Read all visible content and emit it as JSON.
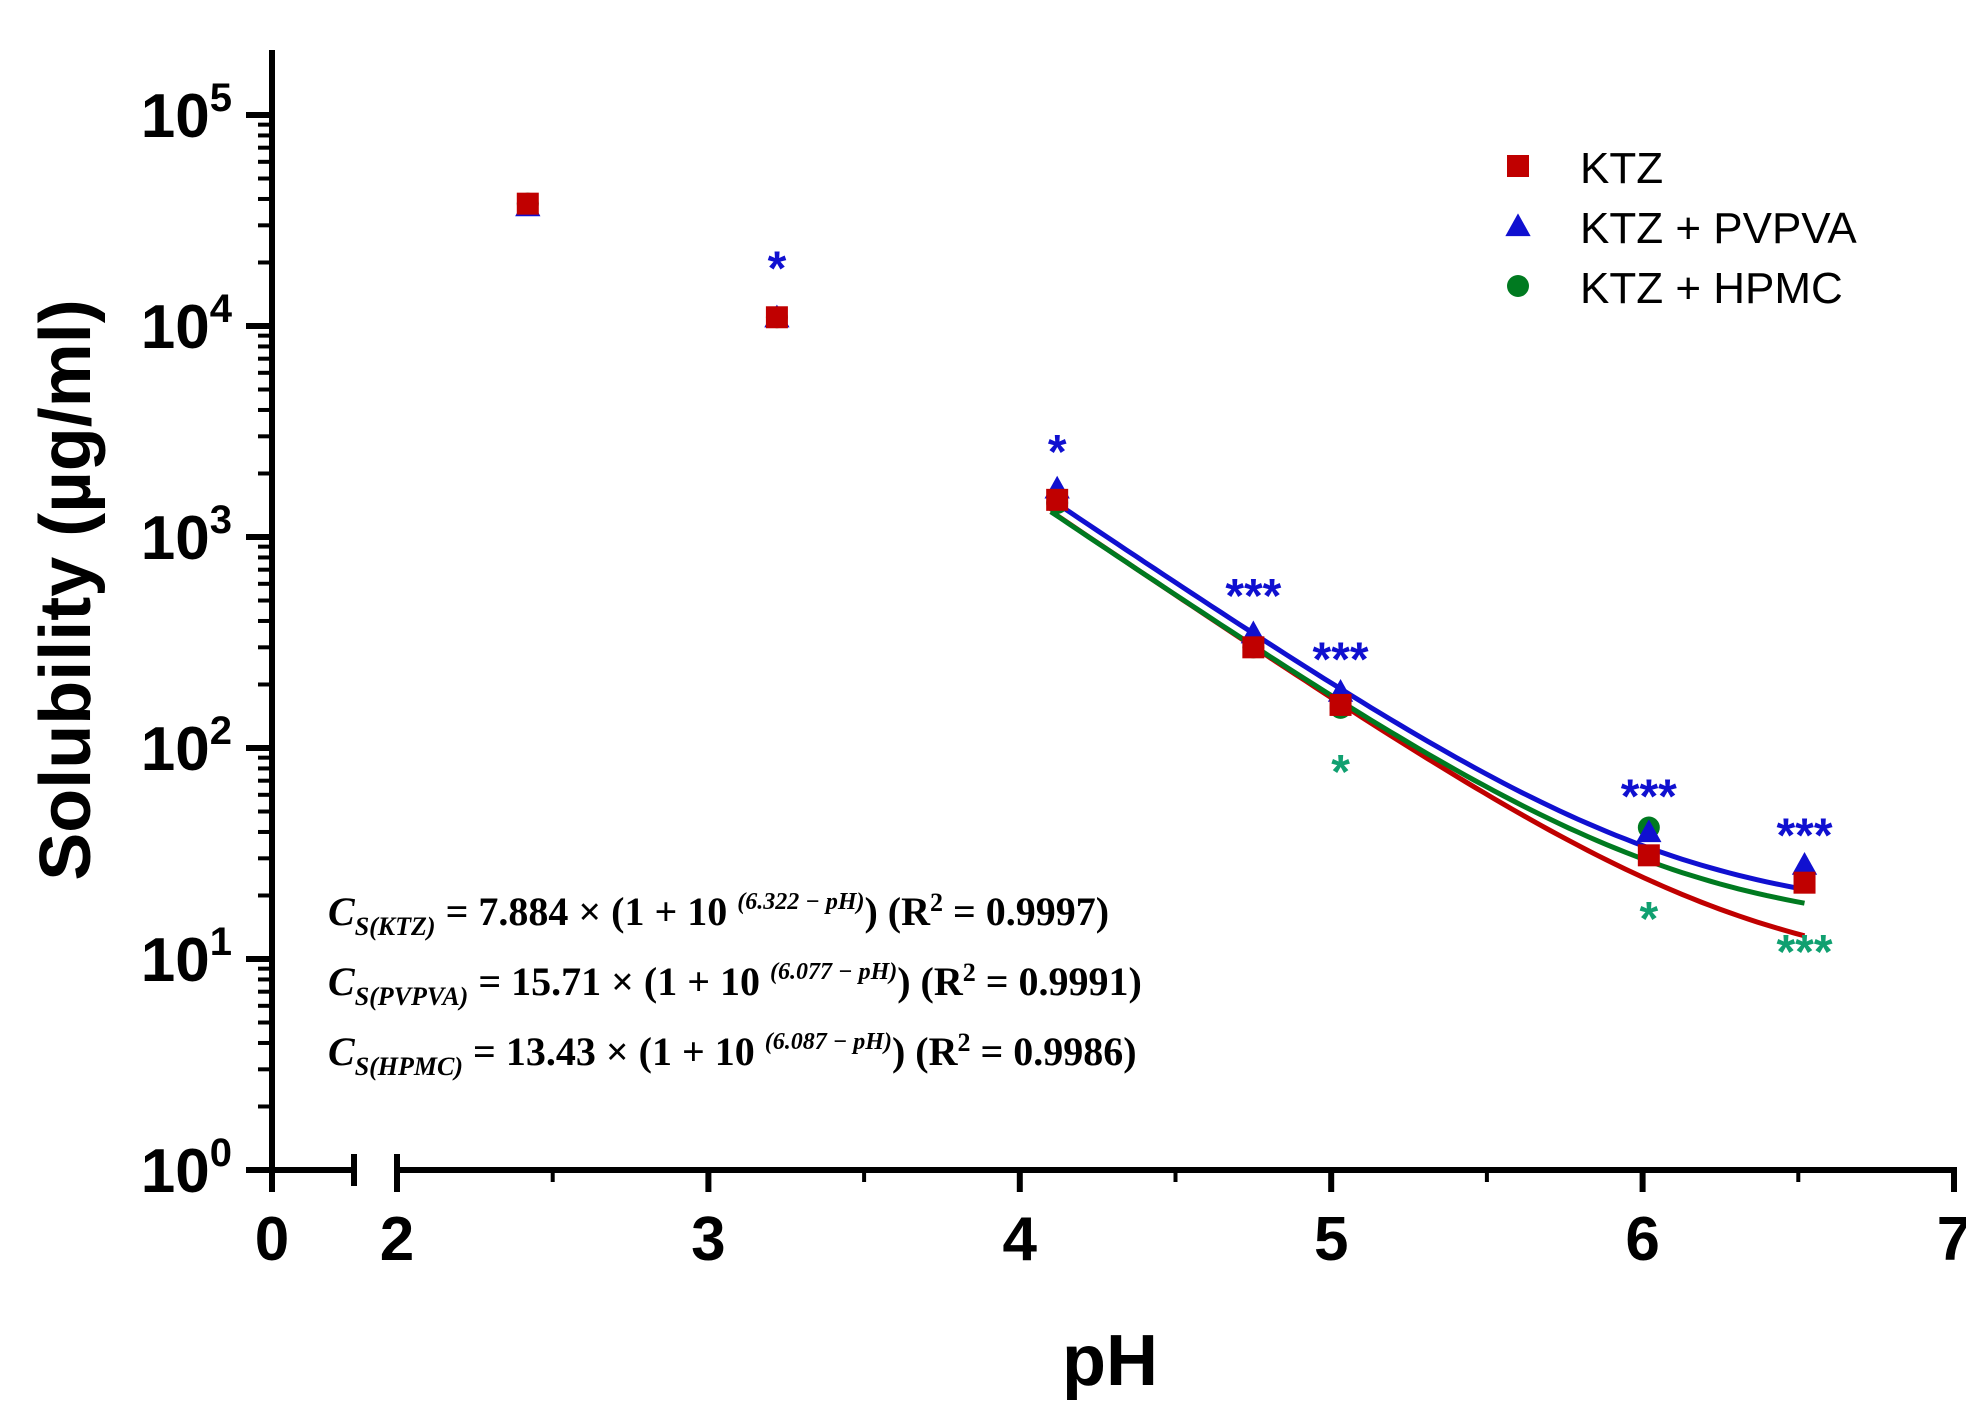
{
  "chart_data": {
    "type": "scatter",
    "title": "",
    "xlabel": "pH",
    "ylabel": "Solubility (µg/ml)",
    "xlim": [
      0,
      7
    ],
    "x_axis_break": [
      0.6,
      2
    ],
    "ylim_log10": [
      0,
      5.3
    ],
    "y_scale": "log",
    "x_ticks": [
      {
        "value": 0,
        "label": "0"
      },
      {
        "value": 2,
        "label": "2"
      },
      {
        "value": 3,
        "label": "3"
      },
      {
        "value": 4,
        "label": "4"
      },
      {
        "value": 5,
        "label": "5"
      },
      {
        "value": 6,
        "label": "6"
      },
      {
        "value": 7,
        "label": "7"
      }
    ],
    "y_ticks": [
      {
        "exp": 0,
        "base": "10",
        "sup": "0"
      },
      {
        "exp": 1,
        "base": "10",
        "sup": "1"
      },
      {
        "exp": 2,
        "base": "10",
        "sup": "2"
      },
      {
        "exp": 3,
        "base": "10",
        "sup": "3"
      },
      {
        "exp": 4,
        "base": "10",
        "sup": "4"
      },
      {
        "exp": 5,
        "base": "10",
        "sup": "5"
      }
    ],
    "legend_position": "top-right",
    "series": [
      {
        "name": "KTZ",
        "marker": "square",
        "color": "#c00000",
        "x": [
          2.42,
          3.22,
          4.12,
          4.75,
          5.03,
          6.02,
          6.52
        ],
        "y": [
          38000,
          11000,
          1500,
          300,
          160,
          31,
          23
        ],
        "fit": {
          "a": 7.884,
          "pKa": 6.322,
          "r2": 0.9997
        }
      },
      {
        "name": "KTZ + PVPVA",
        "marker": "triangle",
        "color": "#1010d0",
        "x": [
          2.42,
          3.22,
          4.12,
          4.75,
          5.03,
          6.02,
          6.52
        ],
        "y": [
          37000,
          11000,
          1700,
          350,
          185,
          40,
          28
        ],
        "fit": {
          "a": 15.71,
          "pKa": 6.077,
          "r2": 0.9991
        }
      },
      {
        "name": "KTZ + HPMC",
        "marker": "circle",
        "color": "#007a20",
        "x": [
          2.42,
          3.22,
          4.12,
          4.75,
          5.03,
          6.02,
          6.52
        ],
        "y": [
          38000,
          11000,
          1450,
          300,
          155,
          42,
          25
        ],
        "fit": {
          "a": 13.43,
          "pKa": 6.087,
          "r2": 0.9986
        }
      }
    ],
    "fit_x_range": [
      4.1,
      6.52
    ],
    "significance_marks": [
      {
        "x": 3.22,
        "y": 20000,
        "text": "*",
        "color": "#1010d0"
      },
      {
        "x": 4.12,
        "y": 2700,
        "text": "*",
        "color": "#1010d0"
      },
      {
        "x": 4.75,
        "y": 560,
        "text": "***",
        "color": "#1010d0"
      },
      {
        "x": 5.03,
        "y": 280,
        "text": "***",
        "color": "#1010d0"
      },
      {
        "x": 5.03,
        "y": 82,
        "text": "*",
        "color": "#10a070"
      },
      {
        "x": 6.02,
        "y": 63,
        "text": "***",
        "color": "#1010d0"
      },
      {
        "x": 6.02,
        "y": 16.5,
        "text": "*",
        "color": "#10a070"
      },
      {
        "x": 6.52,
        "y": 41,
        "text": "***",
        "color": "#1010d0"
      },
      {
        "x": 6.52,
        "y": 11.5,
        "text": "***",
        "color": "#10a070"
      }
    ],
    "equations": [
      {
        "lhs": "C",
        "sub": "S(KTZ)",
        "mid": " = 7.884 × (1 + 10 ",
        "exp": "(6.322 − pH)",
        "rhs": ") (R",
        "r2sup": "2",
        "tail": " = 0.9997)"
      },
      {
        "lhs": "C",
        "sub": "S(PVPVA)",
        "mid": " = 15.71 × (1 + 10 ",
        "exp": "(6.077 − pH)",
        "rhs": ") (R",
        "r2sup": "2",
        "tail": " = 0.9991)"
      },
      {
        "lhs": "C",
        "sub": "S(HPMC)",
        "mid": " = 13.43 × (1 + 10 ",
        "exp": "(6.087 − pH)",
        "rhs": ") (R",
        "r2sup": "2",
        "tail": " = 0.9986)"
      }
    ]
  }
}
